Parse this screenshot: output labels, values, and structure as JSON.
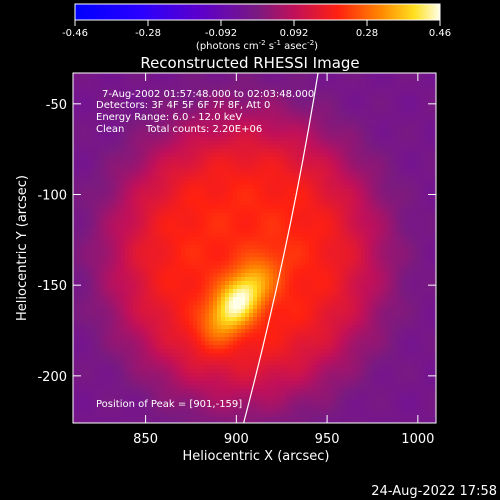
{
  "chart_data": {
    "type": "heatmap",
    "title": "Reconstructed RHESSI Image",
    "xlabel": "Heliocentric X (arcsec)",
    "ylabel": "Heliocentric Y (arcsec)",
    "xlim": [
      810,
      1010
    ],
    "ylim": [
      -226,
      -33
    ],
    "xticks": [
      850,
      900,
      950,
      1000
    ],
    "yticks": [
      -50,
      -100,
      -150,
      -200
    ],
    "colorbar": {
      "min": -0.46,
      "max": 0.46,
      "ticks": [
        "-0.46",
        "-0.28",
        "-0.092",
        "0.092",
        "0.28",
        "0.46"
      ],
      "unit_text": "(photons cm",
      "unit_text_exp1": "-2",
      "unit_text_mid": " s",
      "unit_text_exp2": "-1",
      "unit_text_mid2": " asec",
      "unit_text_exp3": "-2",
      "unit_text_end": ")"
    },
    "annotations": {
      "time_range": "7-Aug-2002 01:57:48.000 to 02:03:48.000",
      "detectors": "Detectors: 3F 4F 5F 6F 7F 8F, Att 0",
      "energy_range": "Energy Range: 6.0 - 12.0 keV",
      "clean": "Clean",
      "total_counts": "Total counts: 2.20E+06",
      "peak": "Position of Peak = [901,-159]"
    },
    "source": {
      "peak_x": 901,
      "peak_y": -159,
      "peak_value": 0.46,
      "halo_center_x": 905,
      "halo_center_y": -135,
      "halo_value": 0.2
    },
    "limb_line": [
      [
        904,
        -226
      ],
      [
        945,
        -33
      ]
    ]
  },
  "timestamp": "24-Aug-2022 17:58"
}
